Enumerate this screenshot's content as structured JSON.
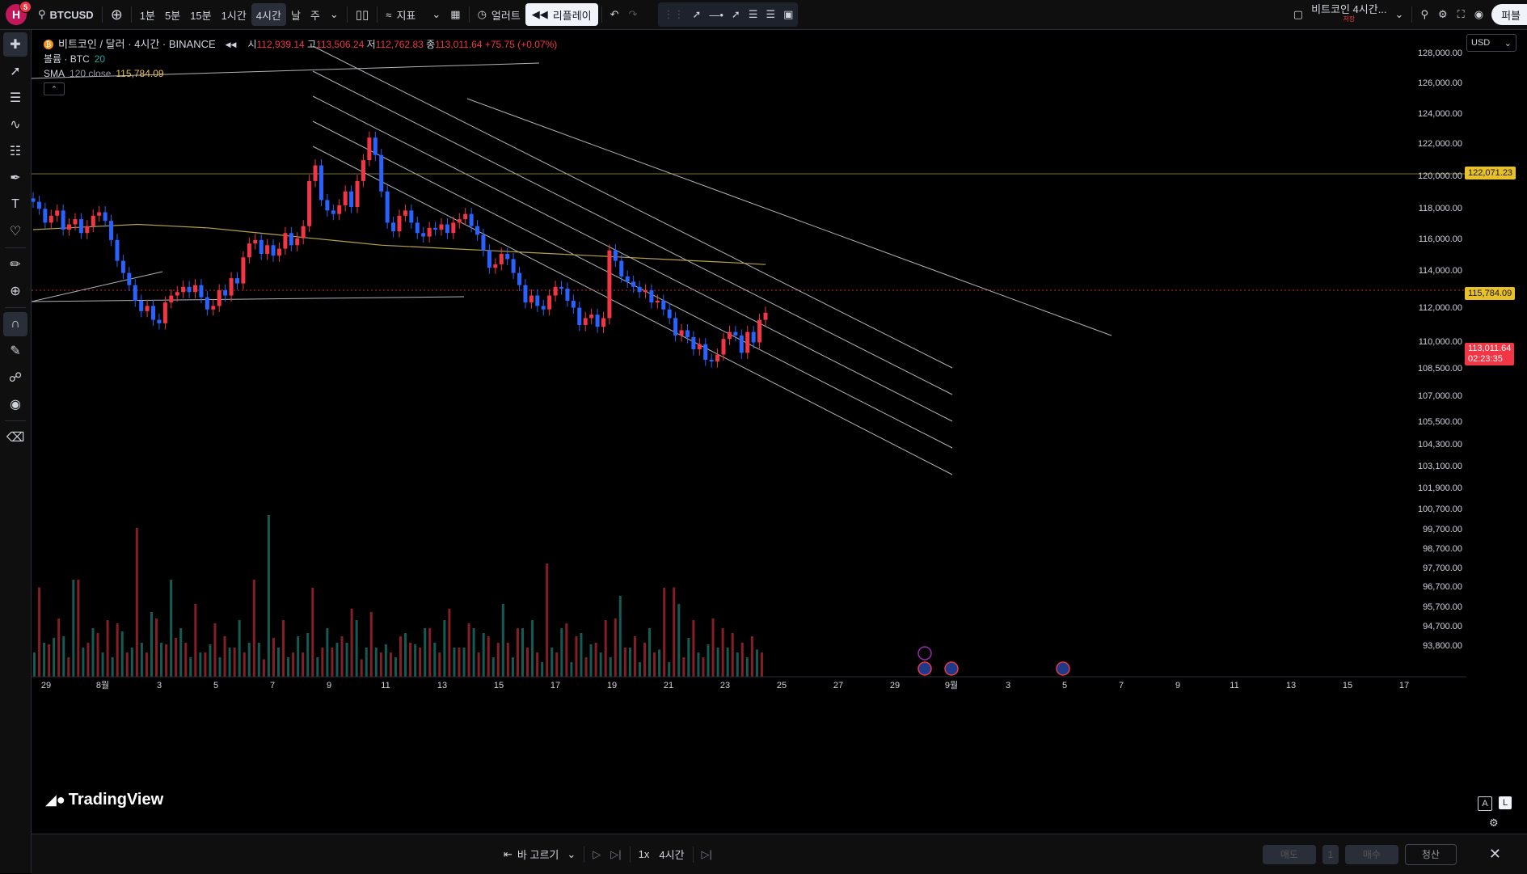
{
  "topbar": {
    "avatar_letter": "H",
    "notification_count": "5",
    "symbol": "BTCUSD",
    "intervals": [
      "1분",
      "5분",
      "15분",
      "1시간",
      "4시간",
      "날",
      "주"
    ],
    "active_interval": "4시간",
    "indicators_label": "지표",
    "alert_label": "얼러트",
    "replay_label": "리플레이",
    "layout_name": "비트코인 4시간...",
    "layout_sub": "저장",
    "publish_label": "퍼블"
  },
  "legend": {
    "title": "비트코인 / 달러 · 4시간 · BINANCE",
    "open_label": "시",
    "open": "112,939.14",
    "high_label": "고",
    "high": "113,506.24",
    "low_label": "저",
    "low": "112,762.83",
    "close_label": "종",
    "close": "113,011.64",
    "change": "+75.75 (+0.07%)",
    "volume_label": "볼륨 · BTC",
    "volume_param": "20",
    "sma_label": "SMA",
    "sma_params": "120 close",
    "sma_value": "115,784.09"
  },
  "price_axis": {
    "currency": "USD",
    "labels": [
      "128,000.00",
      "126,000.00",
      "124,000.00",
      "122,000.00",
      "120,000.00",
      "118,000.00",
      "116,000.00",
      "114,000.00",
      "112,000.00",
      "110,000.00",
      "108,500.00",
      "107,000.00",
      "105,500.00",
      "104,300.00",
      "103,100.00",
      "101,900.00",
      "100,700.00",
      "99,700.00",
      "98,700.00",
      "97,700.00",
      "96,700.00",
      "95,700.00",
      "94,700.00",
      "93,800.00"
    ],
    "tag_line": "122,071.23",
    "tag_sma": "115,784.09",
    "tag_last": "113,011.64",
    "tag_countdown": "02:23:35"
  },
  "time_axis": {
    "labels": [
      "29",
      "8월",
      "3",
      "5",
      "7",
      "9",
      "11",
      "13",
      "15",
      "17",
      "19",
      "21",
      "23",
      "25",
      "27",
      "29",
      "9월",
      "3",
      "5",
      "7",
      "9",
      "11",
      "13",
      "15",
      "17"
    ]
  },
  "bottombar": {
    "bar_select": "바 고르기",
    "speed": "1x",
    "interval": "4시간",
    "sell": "매도",
    "qty": "1",
    "buy": "매수",
    "close": "청산"
  },
  "brand": "TradingView",
  "scale_buttons": [
    "A",
    "L"
  ],
  "chart_data": {
    "type": "candlestick",
    "symbol": "BTCUSD",
    "interval": "4h",
    "ylim": [
      93000,
      129000
    ],
    "close_series": [
      119400,
      119000,
      118200,
      118600,
      118900,
      117800,
      118100,
      118400,
      117600,
      118000,
      118600,
      118800,
      118300,
      117200,
      116000,
      115300,
      114600,
      113700,
      113100,
      113400,
      112600,
      112400,
      113600,
      114000,
      114200,
      114500,
      114200,
      114600,
      113900,
      113200,
      113400,
      114300,
      114000,
      115000,
      114700,
      116200,
      117000,
      117200,
      116400,
      116900,
      116300,
      116700,
      117600,
      116900,
      117300,
      118000,
      120600,
      121500,
      119500,
      118900,
      118700,
      119200,
      120000,
      119100,
      120600,
      121800,
      123100,
      122100,
      120000,
      118200,
      117700,
      118600,
      118900,
      118200,
      117600,
      117400,
      117900,
      117800,
      118100,
      117600,
      118200,
      118400,
      118700,
      118000,
      117500,
      116600,
      115600,
      115800,
      116400,
      116100,
      115300,
      114600,
      113600,
      114000,
      113400,
      113200,
      114000,
      114500,
      114400,
      113700,
      113300,
      112300,
      112700,
      112900,
      112200,
      112700,
      116600,
      116000,
      115100,
      114800,
      114500,
      114200,
      114300,
      113600,
      113700,
      113200,
      112700,
      111700,
      112000,
      111600,
      110900,
      111200,
      110300,
      110200,
      110600,
      111500,
      111900,
      111700,
      110700,
      111900,
      111300,
      112600,
      113011
    ],
    "sma_120": [
      117800,
      117900,
      118000,
      118100,
      118000,
      117900,
      117700,
      117500,
      117300,
      117100,
      116900,
      116800,
      116700,
      116600,
      116500,
      116400,
      116300,
      116200,
      116100,
      116000,
      115900,
      115784
    ],
    "volume_relative": [
      0.15,
      0.2,
      0.25,
      0.6,
      0.3,
      0.35,
      0.28,
      0.92,
      0.4,
      0.2,
      0.3,
      0.45,
      0.2,
      0.25,
      0.35,
      0.6,
      1.0,
      0.35,
      0.25,
      0.55,
      0.3,
      0.25,
      0.35,
      0.4,
      0.2,
      0.25,
      0.2,
      0.3,
      0.35,
      0.18,
      0.3,
      0.25,
      0.45,
      0.3,
      0.35,
      0.7,
      0.3,
      0.25,
      0.2,
      0.35,
      0.5,
      0.25,
      0.3,
      0.55,
      0.45,
      0.35,
      0.2,
      0.3,
      0.15,
      0.25
    ]
  }
}
